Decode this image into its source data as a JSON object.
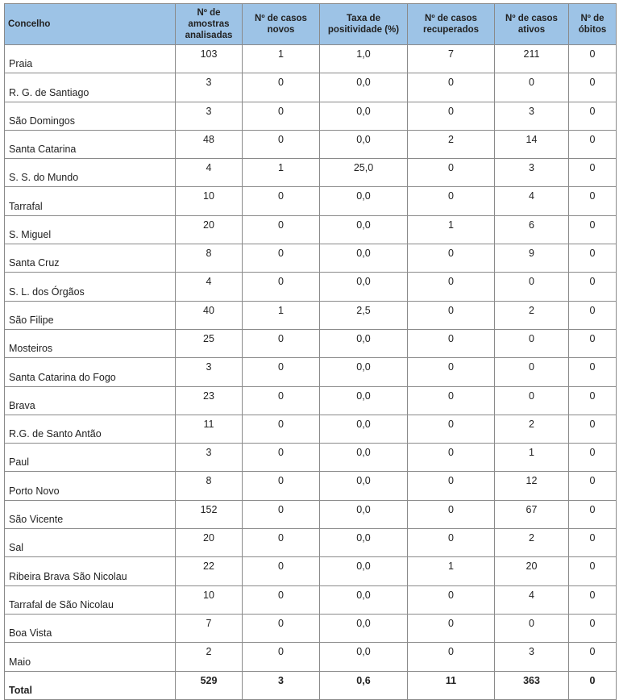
{
  "table": {
    "headers": [
      "Concelho",
      "Nº de amostras analisadas",
      "Nº de casos novos",
      "Taxa de positividade (%)",
      "Nº de casos recuperados",
      "Nº de casos ativos",
      "Nº de óbitos"
    ],
    "header_color": "#9dc3e6",
    "rows": [
      [
        "Praia",
        "103",
        "1",
        "1,0",
        "7",
        "211",
        "0"
      ],
      [
        "R. G. de Santiago",
        "3",
        "0",
        "0,0",
        "0",
        "0",
        "0"
      ],
      [
        "São Domingos",
        "3",
        "0",
        "0,0",
        "0",
        "3",
        "0"
      ],
      [
        "Santa Catarina",
        "48",
        "0",
        "0,0",
        "2",
        "14",
        "0"
      ],
      [
        "S. S. do Mundo",
        "4",
        "1",
        "25,0",
        "0",
        "3",
        "0"
      ],
      [
        "Tarrafal",
        "10",
        "0",
        "0,0",
        "0",
        "4",
        "0"
      ],
      [
        "S. Miguel",
        "20",
        "0",
        "0,0",
        "1",
        "6",
        "0"
      ],
      [
        "Santa Cruz",
        "8",
        "0",
        "0,0",
        "0",
        "9",
        "0"
      ],
      [
        "S. L. dos Órgãos",
        "4",
        "0",
        "0,0",
        "0",
        "0",
        "0"
      ],
      [
        "São Filipe",
        "40",
        "1",
        "2,5",
        "0",
        "2",
        "0"
      ],
      [
        "Mosteiros",
        "25",
        "0",
        "0,0",
        "0",
        "0",
        "0"
      ],
      [
        "Santa Catarina do Fogo",
        "3",
        "0",
        "0,0",
        "0",
        "0",
        "0"
      ],
      [
        "Brava",
        "23",
        "0",
        "0,0",
        "0",
        "0",
        "0"
      ],
      [
        "R.G. de Santo Antão",
        "11",
        "0",
        "0,0",
        "0",
        "2",
        "0"
      ],
      [
        "Paul",
        "3",
        "0",
        "0,0",
        "0",
        "1",
        "0"
      ],
      [
        "Porto Novo",
        "8",
        "0",
        "0,0",
        "0",
        "12",
        "0"
      ],
      [
        "São Vicente",
        "152",
        "0",
        "0,0",
        "0",
        "67",
        "0"
      ],
      [
        "Sal",
        "20",
        "0",
        "0,0",
        "0",
        "2",
        "0"
      ],
      [
        "Ribeira Brava São Nicolau",
        "22",
        "0",
        "0,0",
        "1",
        "20",
        "0"
      ],
      [
        "Tarrafal de São Nicolau",
        "10",
        "0",
        "0,0",
        "0",
        "4",
        "0"
      ],
      [
        "Boa Vista",
        "7",
        "0",
        "0,0",
        "0",
        "0",
        "0"
      ],
      [
        "Maio",
        "2",
        "0",
        "0,0",
        "0",
        "3",
        "0"
      ]
    ],
    "total": [
      "Total",
      "529",
      "3",
      "0,6",
      "11",
      "363",
      "0"
    ]
  }
}
